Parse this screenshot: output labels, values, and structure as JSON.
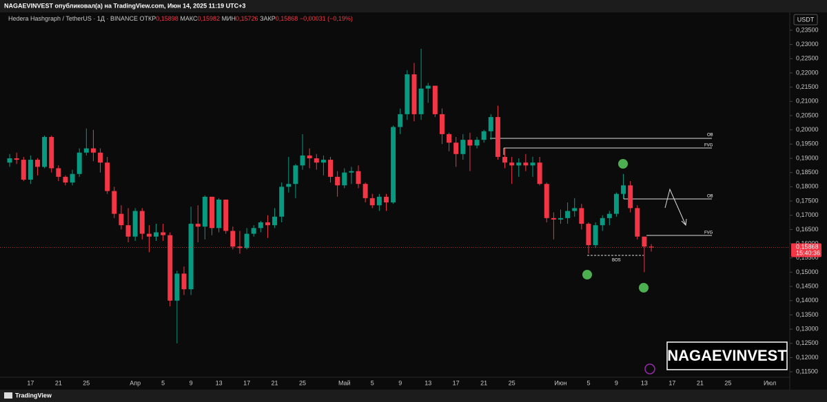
{
  "header": {
    "publisher": "NAGAEVINVEST опубликовал(а) на TradingView.com, Июн 14, 2025 11:19 UTC+3",
    "brand": "TradingView",
    "watermark": "NAGAEVINVEST"
  },
  "chart_data": {
    "type": "candlestick",
    "symbol": "Hedera Hashgraph / TetherUS · 1Д · BINANCE",
    "ohlc_legend": [
      {
        "label": "ОТКР",
        "value": "0,15898"
      },
      {
        "label": "МАКС",
        "value": "0,15982"
      },
      {
        "label": "МИН",
        "value": "0,15726"
      },
      {
        "label": "ЗАКР",
        "value": "0,15868"
      }
    ],
    "change": "−0,00031 (−0,19%)",
    "currency": "USDT",
    "last_price_label": "0,15868",
    "countdown": "15:40:36",
    "up_color": "#089981",
    "down_color": "#f23645",
    "grid": false,
    "annotations": [
      "OB",
      "FVG",
      "OB",
      "FVG",
      "BOS"
    ],
    "categories": [
      null,
      null,
      null,
      "17",
      null,
      null,
      null,
      "21",
      null,
      null,
      null,
      "25",
      null,
      null,
      null,
      null,
      null,
      null,
      "Апр",
      null,
      null,
      null,
      "5",
      null,
      null,
      null,
      "9",
      null,
      null,
      null,
      "13",
      null,
      null,
      null,
      "17",
      null,
      null,
      null,
      "21",
      null,
      null,
      null,
      "25",
      null,
      null,
      null,
      null,
      null,
      "Май",
      null,
      null,
      null,
      "5",
      null,
      null,
      null,
      "9",
      null,
      null,
      null,
      "13",
      null,
      null,
      null,
      "17",
      null,
      null,
      null,
      "21",
      null,
      null,
      null,
      "25",
      null,
      null,
      null,
      null,
      null,
      null,
      "Июн",
      null,
      null,
      null,
      "5",
      null,
      null,
      null,
      "9",
      null,
      null,
      null,
      "13",
      null,
      null,
      null,
      "17",
      null,
      null,
      null,
      "21",
      null,
      null,
      null,
      "25",
      null,
      null,
      null,
      null,
      null,
      "Июл",
      null,
      null
    ],
    "ohlc": [
      [
        0.1885,
        0.1915,
        0.187,
        0.19
      ],
      [
        0.19,
        0.192,
        0.188,
        0.1895
      ],
      [
        0.1895,
        0.1905,
        0.182,
        0.1825
      ],
      [
        0.1825,
        0.191,
        0.181,
        0.1895
      ],
      [
        0.1895,
        0.19,
        0.184,
        0.187
      ],
      [
        0.187,
        0.198,
        0.1865,
        0.1975
      ],
      [
        0.1975,
        0.198,
        0.185,
        0.1865
      ],
      [
        0.1865,
        0.1875,
        0.182,
        0.1835
      ],
      [
        0.1835,
        0.184,
        0.1805,
        0.1815
      ],
      [
        0.1815,
        0.186,
        0.1805,
        0.1845
      ],
      [
        0.1845,
        0.1935,
        0.1835,
        0.192
      ],
      [
        0.192,
        0.2005,
        0.191,
        0.1935
      ],
      [
        0.1935,
        0.2,
        0.189,
        0.192
      ],
      [
        0.192,
        0.1935,
        0.185,
        0.1885
      ],
      [
        0.1885,
        0.1905,
        0.1775,
        0.1785
      ],
      [
        0.1785,
        0.18,
        0.169,
        0.1705
      ],
      [
        0.1705,
        0.1735,
        0.165,
        0.1665
      ],
      [
        0.1665,
        0.1725,
        0.1605,
        0.1625
      ],
      [
        0.1625,
        0.1725,
        0.161,
        0.1715
      ],
      [
        0.1715,
        0.1725,
        0.1615,
        0.1635
      ],
      [
        0.1635,
        0.1665,
        0.157,
        0.1625
      ],
      [
        0.1625,
        0.167,
        0.161,
        0.164
      ],
      [
        0.164,
        0.167,
        0.161,
        0.163
      ],
      [
        0.163,
        0.164,
        0.138,
        0.14
      ],
      [
        0.14,
        0.1505,
        0.125,
        0.1495
      ],
      [
        0.1495,
        0.152,
        0.142,
        0.144
      ],
      [
        0.144,
        0.173,
        0.142,
        0.167
      ],
      [
        0.167,
        0.1735,
        0.1605,
        0.166
      ],
      [
        0.166,
        0.177,
        0.1615,
        0.1765
      ],
      [
        0.1765,
        0.1765,
        0.163,
        0.1655
      ],
      [
        0.1655,
        0.176,
        0.164,
        0.1755
      ],
      [
        0.1755,
        0.1755,
        0.1635,
        0.1645
      ],
      [
        0.1645,
        0.166,
        0.158,
        0.159
      ],
      [
        0.159,
        0.1645,
        0.1565,
        0.1585
      ],
      [
        0.1585,
        0.1655,
        0.158,
        0.1635
      ],
      [
        0.1635,
        0.1665,
        0.1625,
        0.1655
      ],
      [
        0.1655,
        0.168,
        0.164,
        0.1675
      ],
      [
        0.1675,
        0.17,
        0.162,
        0.1665
      ],
      [
        0.1665,
        0.1725,
        0.1655,
        0.1695
      ],
      [
        0.1695,
        0.1815,
        0.1675,
        0.18
      ],
      [
        0.18,
        0.1905,
        0.178,
        0.181
      ],
      [
        0.181,
        0.188,
        0.176,
        0.1875
      ],
      [
        0.1875,
        0.1985,
        0.186,
        0.191
      ],
      [
        0.191,
        0.1935,
        0.1865,
        0.19
      ],
      [
        0.19,
        0.1915,
        0.186,
        0.1885
      ],
      [
        0.1885,
        0.191,
        0.184,
        0.1895
      ],
      [
        0.1895,
        0.1905,
        0.1815,
        0.1835
      ],
      [
        0.1835,
        0.1855,
        0.1765,
        0.1805
      ],
      [
        0.1805,
        0.1865,
        0.1795,
        0.185
      ],
      [
        0.185,
        0.187,
        0.181,
        0.1855
      ],
      [
        0.1855,
        0.1875,
        0.1795,
        0.181
      ],
      [
        0.181,
        0.1815,
        0.1745,
        0.176
      ],
      [
        0.176,
        0.1775,
        0.1725,
        0.1735
      ],
      [
        0.1735,
        0.1775,
        0.1715,
        0.1765
      ],
      [
        0.1765,
        0.1775,
        0.1715,
        0.1745
      ],
      [
        0.1745,
        0.2015,
        0.174,
        0.201
      ],
      [
        0.201,
        0.2075,
        0.1985,
        0.2055
      ],
      [
        0.2055,
        0.221,
        0.2035,
        0.2195
      ],
      [
        0.2195,
        0.2235,
        0.203,
        0.2055
      ],
      [
        0.2055,
        0.2285,
        0.2035,
        0.2145
      ],
      [
        0.2145,
        0.2165,
        0.2095,
        0.2155
      ],
      [
        0.2155,
        0.2155,
        0.2045,
        0.2055
      ],
      [
        0.2055,
        0.2075,
        0.195,
        0.1985
      ],
      [
        0.1985,
        0.199,
        0.1925,
        0.1955
      ],
      [
        0.1955,
        0.1975,
        0.187,
        0.1915
      ],
      [
        0.1915,
        0.1985,
        0.1895,
        0.1965
      ],
      [
        0.1965,
        0.199,
        0.1855,
        0.1945
      ],
      [
        0.1945,
        0.1975,
        0.1935,
        0.1965
      ],
      [
        0.1965,
        0.2,
        0.1955,
        0.1995
      ],
      [
        0.1995,
        0.2055,
        0.1965,
        0.2045
      ],
      [
        0.2045,
        0.2085,
        0.1895,
        0.1905
      ],
      [
        0.1905,
        0.1935,
        0.1865,
        0.1885
      ],
      [
        0.1885,
        0.1905,
        0.181,
        0.1875
      ],
      [
        0.1875,
        0.19,
        0.1835,
        0.1885
      ],
      [
        0.1885,
        0.1915,
        0.1855,
        0.1875
      ],
      [
        0.1875,
        0.1905,
        0.1835,
        0.1885
      ],
      [
        0.1885,
        0.1905,
        0.1805,
        0.181
      ],
      [
        0.181,
        0.1815,
        0.1675,
        0.169
      ],
      [
        0.169,
        0.171,
        0.1615,
        0.1685
      ],
      [
        0.1685,
        0.172,
        0.167,
        0.169
      ],
      [
        0.169,
        0.1745,
        0.167,
        0.1715
      ],
      [
        0.1715,
        0.176,
        0.1695,
        0.1725
      ],
      [
        0.1725,
        0.174,
        0.165,
        0.167
      ],
      [
        0.167,
        0.1675,
        0.1565,
        0.1595
      ],
      [
        0.1595,
        0.1675,
        0.1585,
        0.1665
      ],
      [
        0.1665,
        0.17,
        0.1645,
        0.169
      ],
      [
        0.169,
        0.1715,
        0.1665,
        0.1705
      ],
      [
        0.1705,
        0.178,
        0.1695,
        0.1775
      ],
      [
        0.1775,
        0.1845,
        0.176,
        0.1805
      ],
      [
        0.1805,
        0.182,
        0.171,
        0.1725
      ],
      [
        0.1725,
        0.1735,
        0.1615,
        0.1625
      ],
      [
        0.1625,
        0.1625,
        0.15,
        0.159
      ],
      [
        0.15898,
        0.15982,
        0.15726,
        0.15868
      ],
      null,
      null,
      null,
      null,
      null,
      null,
      null,
      null,
      null,
      null,
      null,
      null,
      null,
      null,
      null,
      null,
      null,
      null,
      null
    ],
    "ylim": [
      0.1131,
      0.2432
    ],
    "yticks": [
      {
        "value": 0.115,
        "label": "0,11500"
      },
      {
        "value": 0.12,
        "label": "0,12000"
      },
      {
        "value": 0.125,
        "label": "0,12500"
      },
      {
        "value": 0.13,
        "label": "0,13000"
      },
      {
        "value": 0.135,
        "label": "0,13500"
      },
      {
        "value": 0.14,
        "label": "0,14000"
      },
      {
        "value": 0.145,
        "label": "0,14500"
      },
      {
        "value": 0.15,
        "label": "0,15000"
      },
      {
        "value": 0.155,
        "label": "0,15500"
      },
      {
        "value": 0.16,
        "label": "0,16000"
      },
      {
        "value": 0.165,
        "label": "0,16500"
      },
      {
        "value": 0.17,
        "label": "0,17000"
      },
      {
        "value": 0.175,
        "label": "0,17500"
      },
      {
        "value": 0.18,
        "label": "0,18000"
      },
      {
        "value": 0.185,
        "label": "0,18500"
      },
      {
        "value": 0.19,
        "label": "0,19000"
      },
      {
        "value": 0.195,
        "label": "0,19500"
      },
      {
        "value": 0.2,
        "label": "0,20000"
      },
      {
        "value": 0.205,
        "label": "0,20500"
      },
      {
        "value": 0.21,
        "label": "0,21000"
      },
      {
        "value": 0.215,
        "label": "0,21500"
      },
      {
        "value": 0.22,
        "label": "0,22000"
      },
      {
        "value": 0.225,
        "label": "0,22500"
      },
      {
        "value": 0.23,
        "label": "0,23000"
      },
      {
        "value": 0.235,
        "label": "0,23500"
      }
    ]
  }
}
